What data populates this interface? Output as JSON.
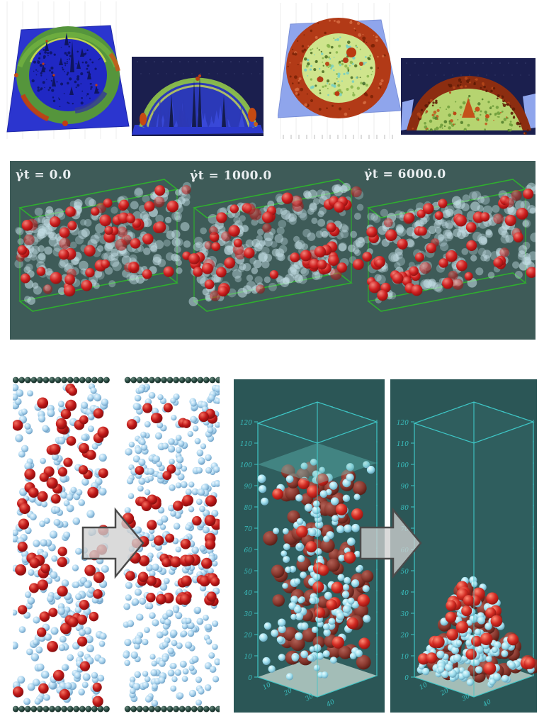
{
  "figure": {
    "top_row": {
      "description": "four 3D height-profile surface plots of a drying droplet (top view and side view, before and after)",
      "panel_backgrounds": [
        "#ffffff",
        "#1b1f4e",
        "#ffffff",
        "#1b1f4e"
      ],
      "plane_colors": [
        "#2b35cf",
        "#2a36c4",
        "#8fa5ec",
        "#8fa5ec"
      ],
      "ring_colors": {
        "green_rim": "#55953c",
        "yellow_rim": "#ccdc52",
        "red_rim": "#b23a17",
        "interior_blue": "#2028c4",
        "interior_yellow_green": "#cfe58d"
      }
    },
    "middle_row": {
      "background_color": "#3e5b58",
      "box_color": "#2fae2f",
      "label_color": "#e9eef0",
      "snapshots": [
        {
          "label": "γ̇t = 0.0"
        },
        {
          "label": "γ̇t = 1000.0"
        },
        {
          "label": "γ̇t = 6000.0"
        }
      ],
      "particle_colors": {
        "matrix": "#c3dde4",
        "tracer": "#c41f1f"
      },
      "counts": {
        "matrix_particles": 240,
        "tracer_particles": 62
      }
    },
    "bottom_left": {
      "background_color": "#ffffff",
      "wall_bead_color": "#21403a",
      "particle_colors": {
        "small_blue": "#a9d4ee",
        "large_red": "#c01818"
      },
      "counts": {
        "left_blue": 290,
        "left_red": 76,
        "right_blue": 400,
        "right_red_band": 58,
        "right_red_sparse": 13,
        "wall_beads": 16
      }
    },
    "bottom_right": {
      "background_color": "#2b5656",
      "frame_color": "#3ec6c6",
      "tick_label_color": "#39bdbd",
      "z_axis_ticks": [
        120,
        110,
        100,
        90,
        80,
        70,
        60,
        50,
        40,
        30,
        20,
        10,
        0
      ],
      "x_axis_ticks": [
        10,
        20,
        30,
        40
      ],
      "floor_color": "#b9cfc8",
      "particle_colors": {
        "small_cyan": "#a9e2ee",
        "large_maroon": "#8c3a30",
        "large_bright_red": "#d22a22"
      },
      "counts": {
        "left_cyan": 165,
        "left_maroon": 88,
        "left_bright": 20,
        "right_cyan": 150,
        "right_maroon": 70,
        "right_bright": 28
      }
    },
    "arrows": {
      "fill": "#cfcfcf",
      "outline": "#4a4a4a"
    }
  }
}
